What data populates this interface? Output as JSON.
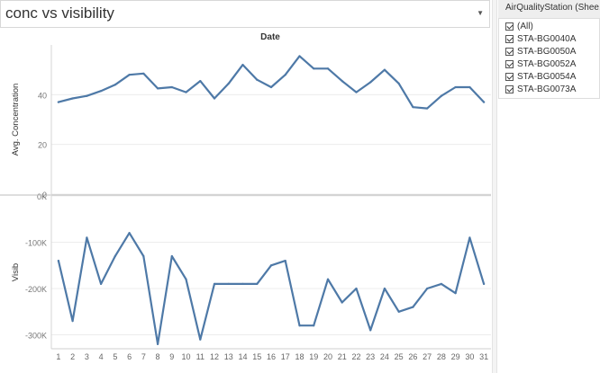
{
  "title": "conc vs visibility",
  "title_dropdown_icon": "caret-down-icon",
  "filter": {
    "title": "AirQualityStation (Shee...",
    "items": [
      "(All)",
      "STA-BG0040A",
      "STA-BG0050A",
      "STA-BG0052A",
      "STA-BG0054A",
      "STA-BG0073A"
    ]
  },
  "chart_data": {
    "type": "line",
    "xlabel": "Date",
    "x": [
      1,
      2,
      3,
      4,
      5,
      6,
      7,
      8,
      9,
      10,
      11,
      12,
      13,
      14,
      15,
      16,
      17,
      18,
      19,
      20,
      21,
      22,
      23,
      24,
      25,
      26,
      27,
      28,
      29,
      30,
      31
    ],
    "color": "#4e79a7",
    "panels": [
      {
        "ylabel": "Avg. Concentration",
        "ylim": [
          0,
          60
        ],
        "yticks": [
          0,
          20,
          40
        ],
        "ytick_labels": [
          "0",
          "20",
          "40"
        ],
        "values": [
          37,
          38.5,
          39.5,
          41.5,
          44,
          48,
          48.5,
          42.5,
          43,
          41,
          45.5,
          38.5,
          44.5,
          52,
          46,
          43,
          48,
          55.5,
          50.5,
          50.5,
          45.5,
          41,
          45,
          50,
          44.5,
          35,
          34.5,
          39.5,
          43,
          43,
          37
        ]
      },
      {
        "ylabel": "Visib",
        "ylim": [
          -330000,
          0
        ],
        "yticks": [
          0,
          -100000,
          -200000,
          -300000
        ],
        "ytick_labels": [
          "0K",
          "-100K",
          "-200K",
          "-300K"
        ],
        "values": [
          -140000,
          -270000,
          -90000,
          -190000,
          -130000,
          -80000,
          -130000,
          -320000,
          -130000,
          -180000,
          -310000,
          -190000,
          -190000,
          -190000,
          -190000,
          -150000,
          -140000,
          -280000,
          -280000,
          -180000,
          -230000,
          -200000,
          -290000,
          -200000,
          -250000,
          -240000,
          -200000,
          -190000,
          -210000,
          -90000,
          -190000
        ]
      }
    ]
  }
}
